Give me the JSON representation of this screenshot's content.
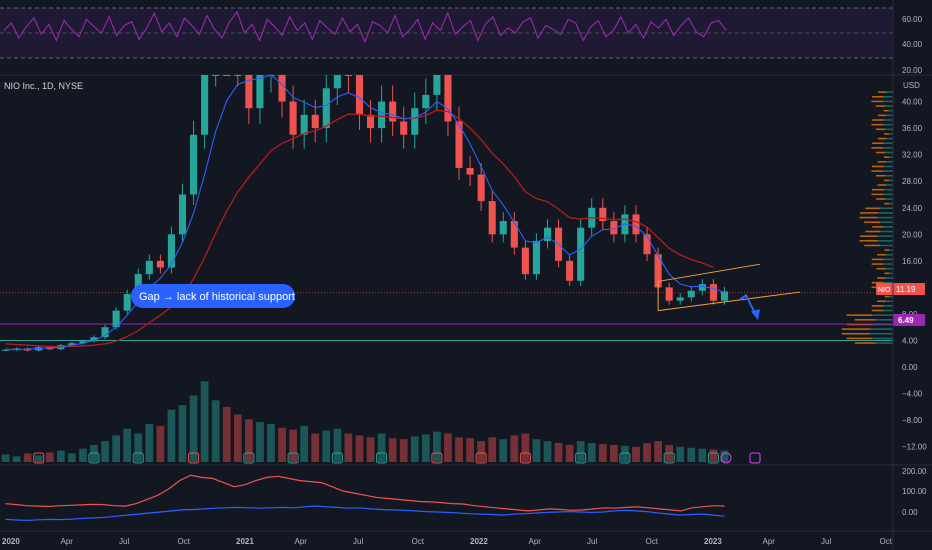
{
  "header": {
    "symbol_line": "NIO Inc., 1D, NYSE",
    "currency": "USD"
  },
  "annotation": {
    "text": "Gap → lack of historical support"
  },
  "colors": {
    "background": "#131722",
    "up": "#26a69a",
    "down": "#ef5350",
    "ma_blue": "#2962ff",
    "ma_red": "#b71c1c",
    "rsi": "#9c27b0",
    "channel": "#f7a238",
    "support": "#9c27b0",
    "volume_profile": "#f57c00"
  },
  "chart_data": [
    {
      "type": "line",
      "name_id": "rsi",
      "yticks": [
        "60.00",
        "40.00",
        "20.00"
      ],
      "ylim": [
        20,
        70
      ],
      "bands": [
        70,
        50,
        30
      ],
      "values": [
        52,
        58,
        46,
        55,
        62,
        49,
        57,
        44,
        60,
        53,
        47,
        61,
        55,
        50,
        63,
        48,
        56,
        59,
        45,
        54,
        66,
        51,
        58,
        47,
        62,
        56,
        49,
        64,
        53,
        46,
        59,
        67,
        50,
        57,
        44,
        61,
        55,
        48,
        63,
        52,
        58,
        45,
        60,
        54,
        49,
        62,
        51,
        57,
        43,
        59,
        56,
        50,
        64,
        47,
        53,
        61,
        45,
        58,
        52,
        66,
        49,
        55,
        60,
        44,
        57,
        63,
        48,
        54,
        50,
        59,
        62,
        46,
        56,
        53,
        49,
        61,
        58,
        44,
        55,
        60,
        47,
        52,
        63,
        50,
        57,
        46,
        59,
        54,
        61,
        48,
        56,
        62,
        51,
        47,
        58,
        60,
        52
      ]
    },
    {
      "type": "candlestick",
      "title": "NIO Inc., 1D, NYSE",
      "unit": "USD",
      "xticks": [
        "2020",
        "Apr",
        "Jul",
        "Oct",
        "2021",
        "Apr",
        "Jul",
        "Oct",
        "2022",
        "Apr",
        "Jul",
        "Oct",
        "2023",
        "Apr",
        "Jul",
        "Oct"
      ],
      "yticks": [
        "40.00",
        "36.00",
        "32.00",
        "28.00",
        "24.00",
        "20.00",
        "16.00",
        "12.00",
        "8.00",
        "4.00",
        "0.00",
        "−4.00",
        "−8.00",
        "−12.00"
      ],
      "close": [
        2.6,
        2.8,
        2.5,
        3.0,
        2.7,
        3.3,
        3.6,
        3.9,
        4.5,
        6.0,
        8.5,
        11.0,
        14.0,
        16.0,
        15.0,
        20.0,
        26.0,
        35.0,
        45.0,
        55.0,
        52.0,
        45.0,
        39.0,
        44.0,
        48.0,
        40.0,
        35.0,
        38.0,
        36.0,
        42.0,
        46.0,
        44.0,
        38.0,
        36.0,
        40.0,
        37.0,
        35.0,
        39.0,
        41.0,
        44.0,
        37.0,
        30.0,
        29.0,
        25.0,
        20.0,
        22.0,
        18.0,
        14.0,
        19.0,
        21.0,
        16.0,
        13.0,
        21.0,
        24.0,
        22.0,
        20.0,
        23.0,
        20.0,
        17.0,
        12.0,
        10.0,
        10.5,
        11.5,
        12.5,
        10.0,
        11.4
      ],
      "ma_blue": [
        2.7,
        2.6,
        2.7,
        2.8,
        2.9,
        3.0,
        3.3,
        3.6,
        4.0,
        4.8,
        6.0,
        7.8,
        9.8,
        11.9,
        13.4,
        15.5,
        18.8,
        23.2,
        29.0,
        35.5,
        40.1,
        42.6,
        43.2,
        43.5,
        44.1,
        42.6,
        40.6,
        39.9,
        39.1,
        39.4,
        40.7,
        41.3,
        40.6,
        39.1,
        38.3,
        38.0,
        37.4,
        37.6,
        38.4,
        40.0,
        38.9,
        36.5,
        33.6,
        30.2,
        26.6,
        24.4,
        21.8,
        19.0,
        18.7,
        19.6,
        18.5,
        16.9,
        17.8,
        19.7,
        20.7,
        20.8,
        21.6,
        21.2,
        19.7,
        16.8,
        14.0,
        12.5,
        12.1,
        12.2,
        11.8,
        11.3
      ],
      "ma_red": [
        3.5,
        3.4,
        3.3,
        3.2,
        3.1,
        3.1,
        3.1,
        3.2,
        3.3,
        3.5,
        3.9,
        4.6,
        5.5,
        6.7,
        7.8,
        9.1,
        10.9,
        13.3,
        16.5,
        20.2,
        23.5,
        26.4,
        28.6,
        30.6,
        32.6,
        33.7,
        34.4,
        35.2,
        35.6,
        36.3,
        37.3,
        38.1,
        38.1,
        37.8,
        37.8,
        37.6,
        37.4,
        37.5,
        37.9,
        38.7,
        38.5,
        37.4,
        36.0,
        34.3,
        32.2,
        30.6,
        28.7,
        26.4,
        25.4,
        24.9,
        23.8,
        22.5,
        22.3,
        22.5,
        22.4,
        22.2,
        22.3,
        21.9,
        21.1,
        19.5,
        17.9,
        16.9,
        16.2,
        15.7,
        15.0
      ],
      "volume": [
        8,
        6,
        9,
        7,
        10,
        12,
        9,
        14,
        18,
        22,
        28,
        35,
        30,
        40,
        38,
        55,
        60,
        70,
        85,
        65,
        58,
        50,
        45,
        42,
        40,
        36,
        34,
        38,
        30,
        33,
        35,
        30,
        28,
        26,
        30,
        25,
        24,
        27,
        29,
        32,
        30,
        26,
        25,
        22,
        26,
        24,
        28,
        30,
        24,
        22,
        20,
        18,
        22,
        20,
        19,
        18,
        17,
        16,
        20,
        22,
        18,
        16,
        15,
        14,
        13,
        12
      ],
      "price_label": "11.19",
      "price_tag": "NIO",
      "support_level": "6.49",
      "last_price": 11.19,
      "support_value": 6.49,
      "gap_level": 4.0,
      "channel": {
        "lower_start": 8.5,
        "lower_end": 11.3,
        "upper_start": 12.9,
        "upper_end": 15.5
      },
      "projection_arrow": {
        "from": 10.2,
        "to": 7.2
      }
    },
    {
      "type": "line",
      "name_id": "oscillator",
      "yticks": [
        "200.00",
        "100.00",
        "0.00"
      ],
      "ylim": [
        -40,
        200
      ],
      "series": [
        {
          "values": [
            40,
            35,
            30,
            28,
            26,
            30,
            32,
            34,
            36,
            35,
            30,
            28,
            40,
            60,
            80,
            110,
            150,
            175,
            165,
            160,
            140,
            120,
            130,
            150,
            165,
            170,
            160,
            150,
            145,
            140,
            120,
            100,
            90,
            80,
            70,
            65,
            60,
            55,
            50,
            48,
            45,
            40,
            38,
            30,
            25,
            20,
            15,
            10,
            5,
            10,
            15,
            12,
            8,
            10,
            15,
            20,
            18,
            22,
            25,
            20,
            15,
            10,
            5,
            20,
            25,
            30,
            28
          ]
        },
        {
          "values": [
            -35,
            -38,
            -40,
            -37,
            -35,
            -36,
            -34,
            -30,
            -28,
            -25,
            -20,
            -15,
            -10,
            -5,
            0,
            5,
            10,
            12,
            15,
            18,
            20,
            22,
            20,
            18,
            20,
            22,
            20,
            25,
            28,
            25,
            22,
            18,
            20,
            15,
            12,
            10,
            8,
            5,
            2,
            0,
            -2,
            -5,
            -8,
            -10,
            -12,
            -15,
            -10,
            -8,
            -5,
            -2,
            0,
            2,
            0,
            -2,
            0,
            5,
            8,
            5,
            2,
            -5,
            -10,
            -15,
            -12,
            -10,
            -15,
            -20
          ]
        }
      ]
    }
  ]
}
